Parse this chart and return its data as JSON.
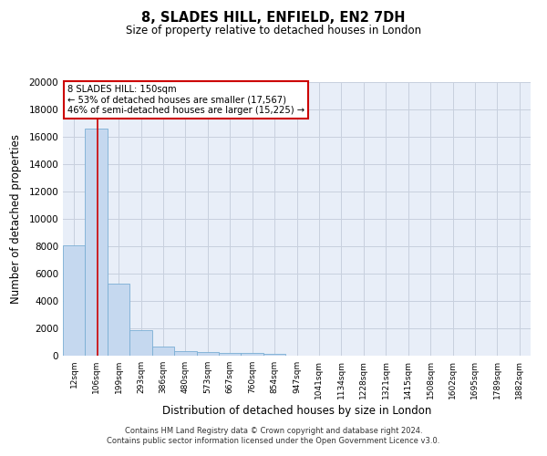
{
  "title": "8, SLADES HILL, ENFIELD, EN2 7DH",
  "subtitle": "Size of property relative to detached houses in London",
  "xlabel": "Distribution of detached houses by size in London",
  "ylabel": "Number of detached properties",
  "bar_color": "#c5d8ef",
  "bar_edge_color": "#7aaed4",
  "categories": [
    "12sqm",
    "106sqm",
    "199sqm",
    "293sqm",
    "386sqm",
    "480sqm",
    "573sqm",
    "667sqm",
    "760sqm",
    "854sqm",
    "947sqm",
    "1041sqm",
    "1134sqm",
    "1228sqm",
    "1321sqm",
    "1415sqm",
    "1508sqm",
    "1602sqm",
    "1695sqm",
    "1789sqm",
    "1882sqm"
  ],
  "values": [
    8100,
    16600,
    5300,
    1850,
    680,
    340,
    270,
    210,
    175,
    150,
    0,
    0,
    0,
    0,
    0,
    0,
    0,
    0,
    0,
    0,
    0
  ],
  "ylim": [
    0,
    20000
  ],
  "yticks": [
    0,
    2000,
    4000,
    6000,
    8000,
    10000,
    12000,
    14000,
    16000,
    18000,
    20000
  ],
  "red_line_x": 1.05,
  "annotation_title": "8 SLADES HILL: 150sqm",
  "annotation_line1": "← 53% of detached houses are smaller (17,567)",
  "annotation_line2": "46% of semi-detached houses are larger (15,225) →",
  "annotation_box_color": "#ffffff",
  "annotation_box_edge": "#cc0000",
  "red_line_color": "#cc0000",
  "grid_color": "#c8d0de",
  "background_color": "#e8eef8",
  "footer1": "Contains HM Land Registry data © Crown copyright and database right 2024.",
  "footer2": "Contains public sector information licensed under the Open Government Licence v3.0."
}
